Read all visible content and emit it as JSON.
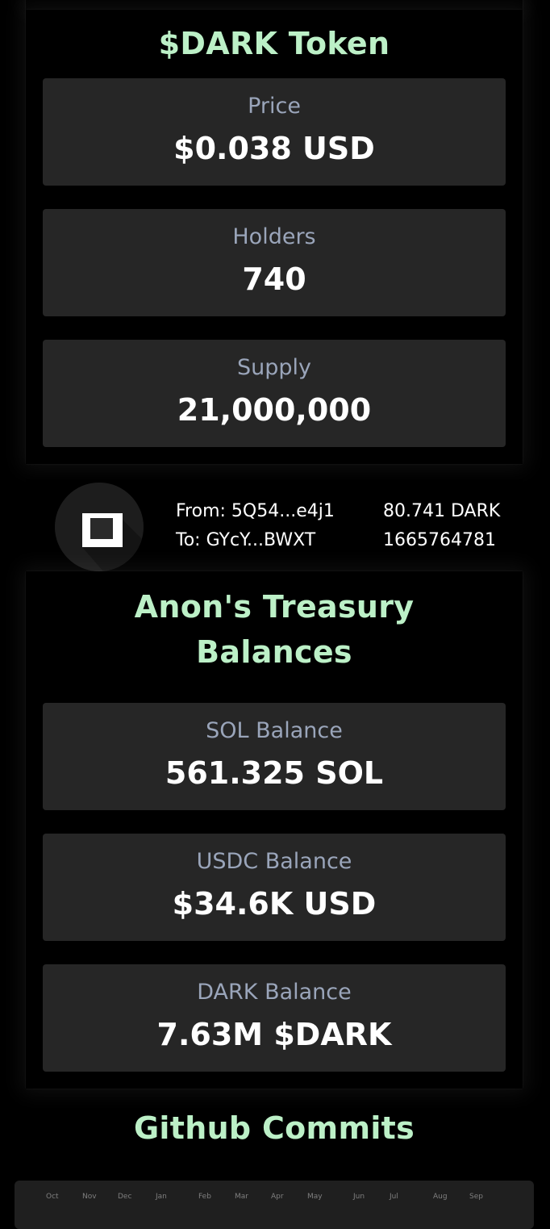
{
  "token_section": {
    "title": "$DARK Token",
    "stats": [
      {
        "label": "Price",
        "value": "$0.038 USD"
      },
      {
        "label": "Holders",
        "value": "740"
      },
      {
        "label": "Supply",
        "value": "21,000,000"
      }
    ]
  },
  "transaction": {
    "from": "From: 5Q54...e4j1",
    "to": "To: GYcY...BWXT",
    "amount": "80.741 DARK",
    "timestamp": "1665764781",
    "icon": "dark-logo-icon"
  },
  "treasury_section": {
    "title_line1": "Anon's Treasury",
    "title_line2": "Balances",
    "stats": [
      {
        "label": "SOL Balance",
        "value": "561.325 SOL"
      },
      {
        "label": "USDC Balance",
        "value": "$34.6K USD"
      },
      {
        "label": "DARK Balance",
        "value": "7.63M $DARK"
      }
    ]
  },
  "github_section": {
    "title": "Github Commits",
    "months": [
      "Oct",
      "Nov",
      "Dec",
      "Jan",
      "Feb",
      "Mar",
      "Apr",
      "May",
      "Jun",
      "Jul",
      "Aug",
      "Sep"
    ]
  },
  "colors": {
    "background": "#000000",
    "card": "#262626",
    "title_accent": "#bcf0c7",
    "label": "#9aa5ba",
    "value": "#ffffff"
  }
}
